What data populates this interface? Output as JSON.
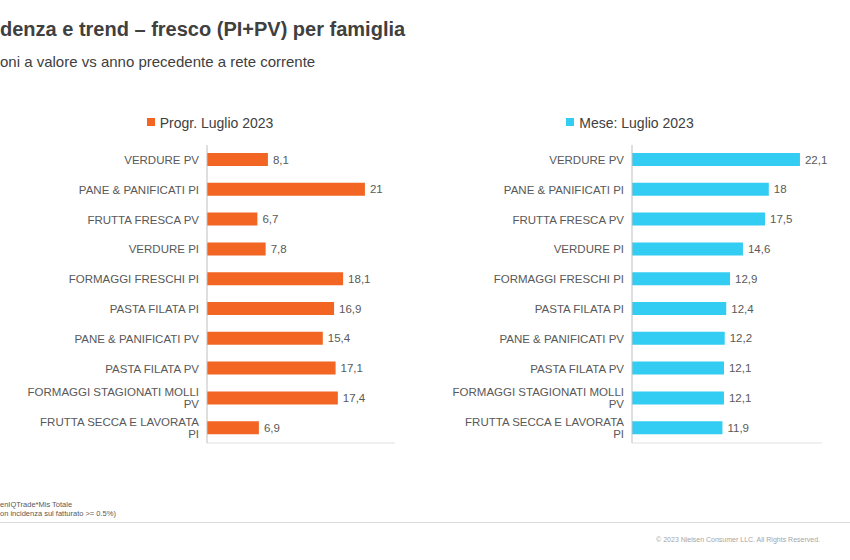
{
  "title": "denza e trend – fresco (PI+PV) per famiglia",
  "subtitle": "oni a valore vs anno precedente a rete corrente",
  "notes": [
    "enIQTrade*Mis Totale",
    "on incidenza sul fatturato >= 0.5%)"
  ],
  "copyright": "© 2023 Nielsen Consumer LLC. All Rights Reserved.",
  "chart_data": [
    {
      "type": "bar",
      "orientation": "horizontal",
      "title": "Progr. Luglio 2023",
      "categories": [
        "VERDURE PV",
        "PANE & PANIFICATI PI",
        "FRUTTA FRESCA PV",
        "VERDURE PI",
        "FORMAGGI FRESCHI PI",
        "PASTA FILATA PI",
        "PANE & PANIFICATI PV",
        "PASTA FILATA PV",
        "FORMAGGI STAGIONATI MOLLI PV",
        "FRUTTA SECCA E LAVORATA PI"
      ],
      "values": [
        8.1,
        21,
        6.7,
        7.8,
        18.1,
        16.9,
        15.4,
        17.1,
        17.4,
        6.9
      ],
      "value_labels": [
        "8,1",
        "21",
        "6,7",
        "7,8",
        "18,1",
        "16,9",
        "15,4",
        "17,1",
        "17,4",
        "6,9"
      ],
      "color": "#f26522",
      "xlim": [
        0,
        25
      ],
      "data_labels": true,
      "tick_labels": "y"
    },
    {
      "type": "bar",
      "orientation": "horizontal",
      "title": "Mese: Luglio 2023",
      "categories": [
        "VERDURE PV",
        "PANE & PANIFICATI PI",
        "FRUTTA FRESCA PV",
        "VERDURE PI",
        "FORMAGGI FRESCHI PI",
        "PASTA FILATA PI",
        "PANE & PANIFICATI PV",
        "PASTA FILATA PV",
        "FORMAGGI STAGIONATI MOLLI PV",
        "FRUTTA SECCA E LAVORATA PI"
      ],
      "values": [
        22.1,
        18,
        17.5,
        14.6,
        12.9,
        12.4,
        12.2,
        12.1,
        12.1,
        11.9
      ],
      "value_labels": [
        "22,1",
        "18",
        "17,5",
        "14,6",
        "12,9",
        "12,4",
        "12,2",
        "12,1",
        "12,1",
        "11,9"
      ],
      "color": "#33ccf2",
      "xlim": [
        0,
        25
      ],
      "data_labels": true,
      "tick_labels": "y"
    }
  ]
}
